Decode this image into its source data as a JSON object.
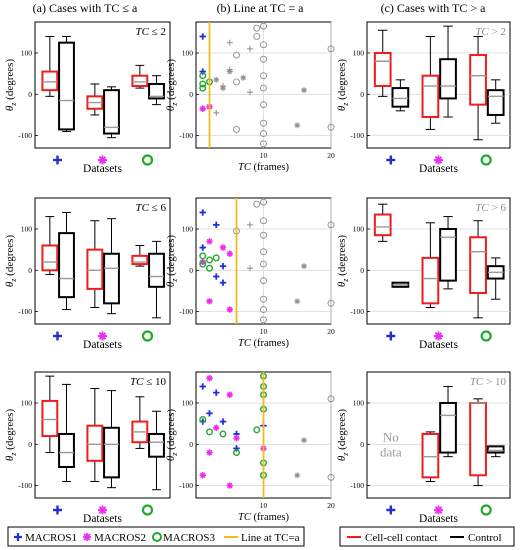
{
  "column_titles": {
    "a": "(a) Cases with TC ≤ a",
    "b": "(b) Line at TC = a",
    "c": "(c) Cases with TC > a"
  },
  "colors": {
    "cellcell": "#ee1c1c",
    "control": "#000000",
    "macros1": "#1f2fe0",
    "macros2": "#ee2cee",
    "macros3": "#22a82a",
    "line": "#f2bc1a",
    "gray": "#8c8c8c",
    "grid": "#d9d9d9"
  },
  "legend": {
    "left": {
      "macros1": "MACROS1",
      "macros2": "MACROS2",
      "macros3": "MACROS3",
      "line": "Line at TC=a"
    },
    "right": {
      "cellcell": "Cell-cell contact",
      "control": "Control"
    }
  },
  "chart_data": [
    {
      "type": "box",
      "panel": "a1",
      "annotation": "TC ≤ 2",
      "xlabel": "Datasets",
      "ylabel": "θz (degrees)",
      "ylim": [
        -130,
        175
      ],
      "yticks": [
        -100,
        0,
        100
      ],
      "categories": [
        "MACROS1",
        "MACROS2",
        "MACROS3"
      ],
      "series": [
        {
          "name": "Cell-cell contact",
          "boxes": [
            [
              -5,
              10,
              30,
              55,
              140
            ],
            [
              -50,
              -35,
              -20,
              -5,
              25
            ],
            [
              15,
              20,
              30,
              45,
              70
            ]
          ]
        },
        {
          "name": "Control",
          "boxes": [
            [
              -90,
              -85,
              -15,
              125,
              140
            ],
            [
              -105,
              -95,
              -80,
              10,
              18
            ],
            [
              -25,
              -10,
              -5,
              25,
              45
            ]
          ]
        }
      ]
    },
    {
      "type": "box",
      "panel": "a2",
      "annotation": "TC ≤ 6",
      "xlabel": "Datasets",
      "ylabel": "θz (degrees)",
      "ylim": [
        -130,
        175
      ],
      "yticks": [
        -100,
        0,
        100
      ],
      "categories": [
        "MACROS1",
        "MACROS2",
        "MACROS3"
      ],
      "series": [
        {
          "name": "Cell-cell contact",
          "boxes": [
            [
              -10,
              0,
              20,
              60,
              130
            ],
            [
              -90,
              -45,
              0,
              50,
              120
            ],
            [
              10,
              15,
              20,
              35,
              60
            ]
          ]
        },
        {
          "name": "Control",
          "boxes": [
            [
              -95,
              -65,
              -20,
              90,
              140
            ],
            [
              -105,
              -80,
              5,
              40,
              125
            ],
            [
              -115,
              -40,
              -15,
              40,
              70
            ]
          ]
        }
      ]
    },
    {
      "type": "box",
      "panel": "a3",
      "annotation": "TC ≤ 10",
      "xlabel": "Datasets",
      "ylabel": "θz (degrees)",
      "ylim": [
        -130,
        175
      ],
      "yticks": [
        -100,
        0,
        100
      ],
      "categories": [
        "MACROS1",
        "MACROS2",
        "MACROS3"
      ],
      "series": [
        {
          "name": "Cell-cell contact",
          "boxes": [
            [
              -20,
              20,
              60,
              105,
              165
            ],
            [
              -90,
              -40,
              0,
              45,
              135
            ],
            [
              -10,
              5,
              30,
              55,
              115
            ]
          ]
        },
        {
          "name": "Control",
          "boxes": [
            [
              -90,
              -55,
              -20,
              25,
              145
            ],
            [
              -105,
              -80,
              0,
              40,
              130
            ],
            [
              -110,
              -30,
              5,
              25,
              80
            ]
          ]
        }
      ]
    },
    {
      "type": "scatter",
      "panel": "b1",
      "line_at_a": 2,
      "xlabel": "TC (frames)",
      "ylabel": "θz (degrees)",
      "xlim": [
        0,
        20
      ],
      "ylim": [
        -130,
        175
      ],
      "xticks": [
        10,
        20
      ],
      "yticks": [
        -100,
        0,
        100
      ],
      "series": [
        {
          "name": "MACROS1",
          "points": [
            [
              1,
              140
            ],
            [
              1,
              55
            ]
          ]
        },
        {
          "name": "MACROS2",
          "points": [
            [
              1,
              -35
            ],
            [
              2,
              -30
            ]
          ]
        },
        {
          "name": "MACROS3",
          "points": [
            [
              1,
              15
            ],
            [
              2,
              30
            ],
            [
              1,
              45
            ],
            [
              1,
              25
            ]
          ]
        },
        {
          "name": "gray-circle",
          "points": [
            [
              6,
              95
            ],
            [
              6,
              30
            ],
            [
              9,
              160
            ],
            [
              9,
              140
            ],
            [
              10,
              165
            ],
            [
              10,
              120
            ],
            [
              10,
              85
            ],
            [
              10,
              45
            ],
            [
              10,
              15
            ],
            [
              10,
              -25
            ],
            [
              10,
              -70
            ],
            [
              10,
              -95
            ],
            [
              10,
              -120
            ],
            [
              6,
              -85
            ],
            [
              20,
              110
            ],
            [
              20,
              -80
            ]
          ]
        },
        {
          "name": "gray-plus",
          "points": [
            [
              5,
              125
            ],
            [
              5,
              60
            ],
            [
              4,
              20
            ],
            [
              3,
              -45
            ],
            [
              8,
              110
            ],
            [
              8,
              5
            ]
          ]
        },
        {
          "name": "gray-star",
          "points": [
            [
              3,
              35
            ],
            [
              4,
              15
            ],
            [
              5,
              55
            ],
            [
              7,
              40
            ],
            [
              16,
              10
            ],
            [
              15,
              -75
            ]
          ]
        }
      ]
    },
    {
      "type": "scatter",
      "panel": "b2",
      "line_at_a": 6,
      "xlabel": "TC (frames)",
      "ylabel": "θz (degrees)",
      "xlim": [
        0,
        20
      ],
      "ylim": [
        -130,
        175
      ],
      "xticks": [
        10,
        20
      ],
      "yticks": [
        -100,
        0,
        100
      ],
      "series": [
        {
          "name": "MACROS1",
          "points": [
            [
              1,
              140
            ],
            [
              3,
              110
            ],
            [
              4,
              10
            ],
            [
              3,
              -15
            ],
            [
              4,
              -30
            ],
            [
              1,
              55
            ]
          ]
        },
        {
          "name": "MACROS2",
          "points": [
            [
              2,
              70
            ],
            [
              5,
              40
            ],
            [
              4,
              55
            ],
            [
              2,
              -75
            ],
            [
              5,
              -95
            ],
            [
              1,
              20
            ]
          ]
        },
        {
          "name": "MACROS3",
          "points": [
            [
              1,
              15
            ],
            [
              2,
              25
            ],
            [
              1,
              35
            ],
            [
              2,
              5
            ],
            [
              3,
              30
            ]
          ]
        },
        {
          "name": "gray-circle",
          "points": [
            [
              6,
              95
            ],
            [
              9,
              160
            ],
            [
              10,
              165
            ],
            [
              10,
              120
            ],
            [
              10,
              85
            ],
            [
              10,
              45
            ],
            [
              10,
              15
            ],
            [
              10,
              -25
            ],
            [
              10,
              -70
            ],
            [
              10,
              -95
            ],
            [
              10,
              -120
            ],
            [
              20,
              110
            ],
            [
              20,
              -80
            ]
          ]
        },
        {
          "name": "gray-plus",
          "points": [
            [
              8,
              110
            ],
            [
              8,
              5
            ]
          ]
        },
        {
          "name": "gray-star",
          "points": [
            [
              16,
              10
            ],
            [
              15,
              -75
            ]
          ]
        }
      ]
    },
    {
      "type": "scatter",
      "panel": "b3",
      "line_at_a": 10,
      "xlabel": "TC (frames)",
      "ylabel": "θz (degrees)",
      "xlim": [
        0,
        20
      ],
      "ylim": [
        -130,
        175
      ],
      "xticks": [
        10,
        20
      ],
      "yticks": [
        -100,
        0,
        100
      ],
      "series": [
        {
          "name": "MACROS1",
          "points": [
            [
              1,
              140
            ],
            [
              3,
              125
            ],
            [
              2,
              75
            ],
            [
              4,
              55
            ],
            [
              6,
              25
            ],
            [
              6,
              -10
            ],
            [
              1,
              55
            ],
            [
              10,
              45
            ]
          ]
        },
        {
          "name": "MACROS2",
          "points": [
            [
              2,
              160
            ],
            [
              5,
              120
            ],
            [
              3,
              40
            ],
            [
              2,
              -20
            ],
            [
              1,
              -75
            ],
            [
              5,
              -100
            ],
            [
              6,
              15
            ],
            [
              10,
              -10
            ]
          ]
        },
        {
          "name": "MACROS3",
          "points": [
            [
              1,
              60
            ],
            [
              2,
              30
            ],
            [
              4,
              25
            ],
            [
              6,
              -20
            ],
            [
              9,
              35
            ],
            [
              10,
              165
            ],
            [
              10,
              140
            ],
            [
              10,
              120
            ],
            [
              10,
              85
            ],
            [
              10,
              -45
            ],
            [
              10,
              -75
            ]
          ]
        },
        {
          "name": "gray-circle",
          "points": [
            [
              20,
              110
            ],
            [
              20,
              -80
            ]
          ]
        },
        {
          "name": "gray-star",
          "points": [
            [
              16,
              10
            ],
            [
              15,
              -75
            ]
          ]
        }
      ]
    },
    {
      "type": "box",
      "panel": "c1",
      "annotation": "TC > 2",
      "xlabel": "Datasets",
      "ylabel": "θz (degrees)",
      "ylim": [
        -130,
        175
      ],
      "yticks": [
        -100,
        0,
        100
      ],
      "categories": [
        "MACROS1",
        "MACROS2",
        "MACROS3"
      ],
      "series": [
        {
          "name": "Cell-cell contact",
          "boxes": [
            [
              -5,
              20,
              80,
              100,
              155
            ],
            [
              -85,
              -55,
              20,
              45,
              140
            ],
            [
              -110,
              -25,
              45,
              95,
              140
            ]
          ]
        },
        {
          "name": "Control",
          "boxes": [
            [
              -40,
              -30,
              -10,
              15,
              35
            ],
            [
              -55,
              -10,
              20,
              85,
              165
            ],
            [
              -70,
              -50,
              -5,
              10,
              35
            ]
          ]
        }
      ]
    },
    {
      "type": "box",
      "panel": "c2",
      "annotation": "TC > 6",
      "xlabel": "Datasets",
      "ylabel": "θz (degrees)",
      "ylim": [
        -130,
        175
      ],
      "yticks": [
        -100,
        0,
        100
      ],
      "categories": [
        "MACROS1",
        "MACROS2",
        "MACROS3"
      ],
      "series": [
        {
          "name": "Cell-cell contact",
          "boxes": [
            [
              70,
              85,
              105,
              135,
              160
            ],
            [
              -90,
              -80,
              -20,
              30,
              115
            ],
            [
              -115,
              -55,
              45,
              80,
              120
            ]
          ]
        },
        {
          "name": "Control",
          "boxes": [
            [
              -40,
              -40,
              -35,
              -30,
              -30
            ],
            [
              -45,
              -25,
              80,
              100,
              130
            ],
            [
              -70,
              -20,
              -5,
              10,
              30
            ]
          ]
        }
      ]
    },
    {
      "type": "box",
      "panel": "c3",
      "annotation": "TC > 10",
      "note": "No data",
      "xlabel": "Datasets",
      "ylabel": "θz (degrees)",
      "ylim": [
        -130,
        175
      ],
      "yticks": [
        -100,
        0,
        100
      ],
      "categories": [
        "MACROS1",
        "MACROS2",
        "MACROS3"
      ],
      "series": [
        {
          "name": "Cell-cell contact",
          "boxes": [
            null,
            [
              -90,
              -80,
              -30,
              25,
              30
            ],
            [
              -100,
              -75,
              100,
              100,
              110
            ]
          ]
        },
        {
          "name": "Control",
          "boxes": [
            null,
            [
              -30,
              -20,
              70,
              100,
              140
            ],
            [
              -30,
              -20,
              -15,
              -5,
              -5
            ]
          ]
        }
      ]
    }
  ]
}
